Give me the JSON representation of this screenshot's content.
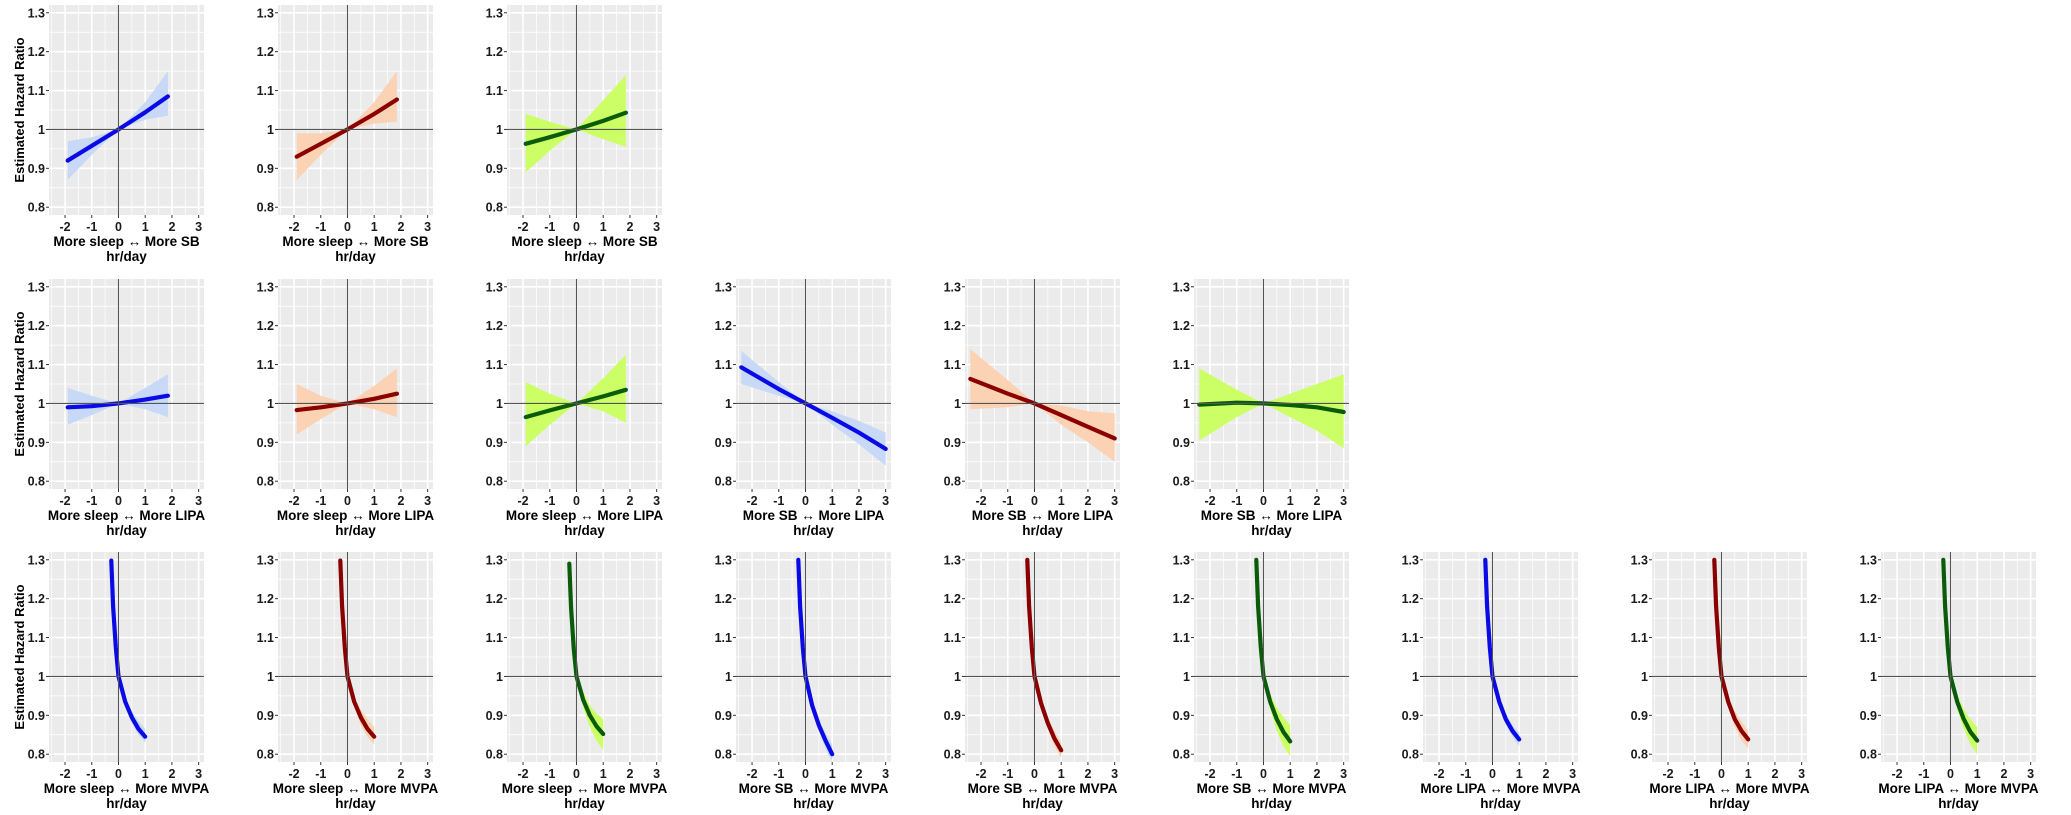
{
  "figure": {
    "ylabel": "Estimated Hazard Ratio",
    "xunit": "hr/day",
    "colors": {
      "blue": "#0a0ae6",
      "red": "#8b0000",
      "green": "#0a5c0a",
      "blue_band": "#c7d9f7",
      "red_band": "#fcd2b4",
      "green_band": "#ccff66",
      "panel_bg": "#ebebeb",
      "grid": "#ffffff",
      "ref_line": "#555555"
    }
  },
  "chart_data": [
    {
      "type": "line",
      "xlabel": "More sleep ↔ More SB",
      "ylim": [
        0.8,
        1.3
      ],
      "xlim": [
        -2,
        3
      ],
      "xticks": [
        "-2",
        "-1",
        "0",
        "1",
        "2",
        "3"
      ],
      "yticks": [
        "0.8",
        "0.9",
        "1",
        "1.1",
        "1.2",
        "1.3"
      ],
      "series": [
        {
          "color": "blue",
          "x": [
            -1.9,
            -1,
            0,
            1,
            1.85
          ],
          "y": [
            0.92,
            0.958,
            1.0,
            1.044,
            1.085
          ],
          "ci_low": [
            0.87,
            0.935,
            1.0,
            1.025,
            1.035
          ],
          "ci_high": [
            0.97,
            0.98,
            1.0,
            1.07,
            1.15
          ]
        }
      ]
    },
    {
      "type": "line",
      "xlabel": "More sleep ↔ More SB",
      "ylim": [
        0.8,
        1.3
      ],
      "xlim": [
        -2,
        3
      ],
      "xticks": [
        "-2",
        "-1",
        "0",
        "1",
        "2",
        "3"
      ],
      "yticks": [
        "0.8",
        "0.9",
        "1",
        "1.1",
        "1.2",
        "1.3"
      ],
      "series": [
        {
          "color": "red",
          "x": [
            -1.9,
            -1,
            0,
            1,
            1.85
          ],
          "y": [
            0.93,
            0.963,
            1.0,
            1.04,
            1.077
          ],
          "ci_low": [
            0.87,
            0.935,
            1.0,
            1.015,
            1.02
          ],
          "ci_high": [
            0.99,
            0.99,
            1.0,
            1.07,
            1.15
          ]
        }
      ]
    },
    {
      "type": "line",
      "xlabel": "More sleep ↔ More SB",
      "ylim": [
        0.8,
        1.3
      ],
      "xlim": [
        -2,
        3
      ],
      "xticks": [
        "-2",
        "-1",
        "0",
        "1",
        "2",
        "3"
      ],
      "yticks": [
        "0.8",
        "0.9",
        "1",
        "1.1",
        "1.2",
        "1.3"
      ],
      "series": [
        {
          "color": "green",
          "x": [
            -1.9,
            -1,
            0,
            1,
            1.85
          ],
          "y": [
            0.963,
            0.98,
            1.0,
            1.022,
            1.043
          ],
          "ci_low": [
            0.89,
            0.945,
            1.0,
            0.975,
            0.955
          ],
          "ci_high": [
            1.04,
            1.02,
            1.0,
            1.075,
            1.14
          ]
        }
      ]
    },
    {
      "type": "line",
      "xlabel": "More sleep ↔ More LIPA",
      "ylim": [
        0.8,
        1.3
      ],
      "xlim": [
        -2,
        3
      ],
      "xticks": [
        "-2",
        "-1",
        "0",
        "1",
        "2",
        "3"
      ],
      "yticks": [
        "0.8",
        "0.9",
        "1",
        "1.1",
        "1.2",
        "1.3"
      ],
      "series": [
        {
          "color": "blue",
          "x": [
            -1.9,
            -1,
            0,
            1,
            1.85
          ],
          "y": [
            0.99,
            0.993,
            1.0,
            1.01,
            1.02
          ],
          "ci_low": [
            0.945,
            0.97,
            1.0,
            0.985,
            0.965
          ],
          "ci_high": [
            1.04,
            1.02,
            1.0,
            1.04,
            1.075
          ]
        }
      ]
    },
    {
      "type": "line",
      "xlabel": "More sleep ↔ More LIPA",
      "ylim": [
        0.8,
        1.3
      ],
      "xlim": [
        -2,
        3
      ],
      "xticks": [
        "-2",
        "-1",
        "0",
        "1",
        "2",
        "3"
      ],
      "yticks": [
        "0.8",
        "0.9",
        "1",
        "1.1",
        "1.2",
        "1.3"
      ],
      "series": [
        {
          "color": "red",
          "x": [
            -1.9,
            -1,
            0,
            1,
            1.85
          ],
          "y": [
            0.983,
            0.99,
            1.0,
            1.012,
            1.025
          ],
          "ci_low": [
            0.92,
            0.96,
            1.0,
            0.985,
            0.965
          ],
          "ci_high": [
            1.05,
            1.02,
            1.0,
            1.045,
            1.09
          ]
        }
      ]
    },
    {
      "type": "line",
      "xlabel": "More sleep ↔ More LIPA",
      "ylim": [
        0.8,
        1.3
      ],
      "xlim": [
        -2,
        3
      ],
      "xticks": [
        "-2",
        "-1",
        "0",
        "1",
        "2",
        "3"
      ],
      "yticks": [
        "0.8",
        "0.9",
        "1",
        "1.1",
        "1.2",
        "1.3"
      ],
      "series": [
        {
          "color": "green",
          "x": [
            -1.9,
            -1,
            0,
            1,
            1.85
          ],
          "y": [
            0.965,
            0.982,
            1.0,
            1.018,
            1.035
          ],
          "ci_low": [
            0.89,
            0.945,
            1.0,
            0.98,
            0.95
          ],
          "ci_high": [
            1.055,
            1.025,
            1.0,
            1.065,
            1.125
          ]
        }
      ]
    },
    {
      "type": "line",
      "xlabel": "More SB ↔ More LIPA",
      "ylim": [
        0.8,
        1.3
      ],
      "xlim": [
        -2,
        3
      ],
      "xticks": [
        "-2",
        "-1",
        "0",
        "1",
        "2",
        "3"
      ],
      "yticks": [
        "0.8",
        "0.9",
        "1",
        "1.1",
        "1.2",
        "1.3"
      ],
      "series": [
        {
          "color": "blue",
          "x": [
            -2.4,
            -1,
            0,
            1,
            2,
            3
          ],
          "y": [
            1.093,
            1.037,
            1.0,
            0.963,
            0.925,
            0.883
          ],
          "ci_low": [
            1.05,
            1.02,
            1.0,
            0.945,
            0.895,
            0.84
          ],
          "ci_high": [
            1.135,
            1.055,
            1.0,
            0.98,
            0.955,
            0.925
          ]
        }
      ]
    },
    {
      "type": "line",
      "xlabel": "More SB ↔ More LIPA",
      "ylim": [
        0.8,
        1.3
      ],
      "xlim": [
        -2,
        3
      ],
      "xticks": [
        "-2",
        "-1",
        "0",
        "1",
        "2",
        "3"
      ],
      "yticks": [
        "0.8",
        "0.9",
        "1",
        "1.1",
        "1.2",
        "1.3"
      ],
      "series": [
        {
          "color": "red",
          "x": [
            -2.4,
            -1,
            0,
            1,
            2,
            3
          ],
          "y": [
            1.063,
            1.025,
            1.0,
            0.97,
            0.94,
            0.91
          ],
          "ci_low": [
            0.985,
            0.99,
            1.0,
            0.945,
            0.9,
            0.85
          ],
          "ci_high": [
            1.14,
            1.06,
            1.0,
            0.995,
            0.98,
            0.975
          ]
        }
      ]
    },
    {
      "type": "line",
      "xlabel": "More SB ↔ More LIPA",
      "ylim": [
        0.8,
        1.3
      ],
      "xlim": [
        -2,
        3
      ],
      "xticks": [
        "-2",
        "-1",
        "0",
        "1",
        "2",
        "3"
      ],
      "yticks": [
        "0.8",
        "0.9",
        "1",
        "1.1",
        "1.2",
        "1.3"
      ],
      "series": [
        {
          "color": "green",
          "x": [
            -2.4,
            -1,
            0,
            1,
            2,
            3
          ],
          "y": [
            0.997,
            1.002,
            1.0,
            0.996,
            0.99,
            0.978
          ],
          "ci_low": [
            0.905,
            0.965,
            1.0,
            0.965,
            0.93,
            0.885
          ],
          "ci_high": [
            1.09,
            1.035,
            1.0,
            1.025,
            1.05,
            1.075
          ]
        }
      ]
    },
    {
      "type": "line",
      "xlabel": "More sleep ↔ More MVPA",
      "ylim": [
        0.8,
        1.3
      ],
      "xlim": [
        -2,
        3
      ],
      "xticks": [
        "-2",
        "-1",
        "0",
        "1",
        "2",
        "3"
      ],
      "yticks": [
        "0.8",
        "0.9",
        "1",
        "1.1",
        "1.2",
        "1.3"
      ],
      "series": [
        {
          "color": "blue",
          "x": [
            -0.27,
            -0.2,
            -0.1,
            0,
            0.25,
            0.5,
            0.75,
            1.0
          ],
          "y": [
            1.298,
            1.18,
            1.075,
            1.0,
            0.935,
            0.895,
            0.865,
            0.845
          ],
          "ci_low": [
            1.28,
            1.16,
            1.06,
            1.0,
            0.925,
            0.88,
            0.85,
            0.83
          ],
          "ci_high": [
            1.31,
            1.195,
            1.085,
            1.0,
            0.945,
            0.91,
            0.885,
            0.865
          ]
        }
      ]
    },
    {
      "type": "line",
      "xlabel": "More sleep ↔ More MVPA",
      "ylim": [
        0.8,
        1.3
      ],
      "xlim": [
        -2,
        3
      ],
      "xticks": [
        "-2",
        "-1",
        "0",
        "1",
        "2",
        "3"
      ],
      "yticks": [
        "0.8",
        "0.9",
        "1",
        "1.1",
        "1.2",
        "1.3"
      ],
      "series": [
        {
          "color": "red",
          "x": [
            -0.27,
            -0.2,
            -0.1,
            0,
            0.25,
            0.5,
            0.75,
            1.0
          ],
          "y": [
            1.298,
            1.18,
            1.075,
            1.0,
            0.935,
            0.895,
            0.865,
            0.845
          ],
          "ci_low": [
            1.28,
            1.16,
            1.06,
            1.0,
            0.925,
            0.875,
            0.845,
            0.825
          ],
          "ci_high": [
            1.31,
            1.195,
            1.085,
            1.0,
            0.945,
            0.915,
            0.89,
            0.87
          ]
        }
      ]
    },
    {
      "type": "line",
      "xlabel": "More sleep ↔ More MVPA",
      "ylim": [
        0.8,
        1.3
      ],
      "xlim": [
        -2,
        3
      ],
      "xticks": [
        "-2",
        "-1",
        "0",
        "1",
        "2",
        "3"
      ],
      "yticks": [
        "0.8",
        "0.9",
        "1",
        "1.1",
        "1.2",
        "1.3"
      ],
      "series": [
        {
          "color": "green",
          "x": [
            -0.27,
            -0.2,
            -0.1,
            0,
            0.25,
            0.5,
            0.75,
            1.0
          ],
          "y": [
            1.29,
            1.175,
            1.07,
            1.0,
            0.94,
            0.9,
            0.872,
            0.852
          ],
          "ci_low": [
            1.27,
            1.155,
            1.055,
            1.0,
            0.92,
            0.87,
            0.835,
            0.81
          ],
          "ci_high": [
            1.305,
            1.19,
            1.085,
            1.0,
            0.96,
            0.925,
            0.905,
            0.89
          ]
        }
      ]
    },
    {
      "type": "line",
      "xlabel": "More SB ↔ More MVPA",
      "ylim": [
        0.8,
        1.3
      ],
      "xlim": [
        -2,
        3
      ],
      "xticks": [
        "-2",
        "-1",
        "0",
        "1",
        "2",
        "3"
      ],
      "yticks": [
        "0.8",
        "0.9",
        "1",
        "1.1",
        "1.2",
        "1.3"
      ],
      "series": [
        {
          "color": "blue",
          "x": [
            -0.27,
            -0.2,
            -0.1,
            0,
            0.25,
            0.5,
            0.75,
            1.0
          ],
          "y": [
            1.3,
            1.18,
            1.075,
            1.0,
            0.925,
            0.875,
            0.835,
            0.8
          ],
          "ci_low": [
            1.285,
            1.165,
            1.06,
            1.0,
            0.915,
            0.86,
            0.815,
            0.78
          ],
          "ci_high": [
            1.315,
            1.195,
            1.09,
            1.0,
            0.935,
            0.89,
            0.855,
            0.825
          ]
        }
      ]
    },
    {
      "type": "line",
      "xlabel": "More SB ↔ More MVPA",
      "ylim": [
        0.8,
        1.3
      ],
      "xlim": [
        -2,
        3
      ],
      "xticks": [
        "-2",
        "-1",
        "0",
        "1",
        "2",
        "3"
      ],
      "yticks": [
        "0.8",
        "0.9",
        "1",
        "1.1",
        "1.2",
        "1.3"
      ],
      "series": [
        {
          "color": "red",
          "x": [
            -0.27,
            -0.2,
            -0.1,
            0,
            0.25,
            0.5,
            0.75,
            1.0
          ],
          "y": [
            1.3,
            1.18,
            1.075,
            1.0,
            0.93,
            0.88,
            0.84,
            0.81
          ],
          "ci_low": [
            1.285,
            1.165,
            1.06,
            1.0,
            0.915,
            0.865,
            0.82,
            0.79
          ],
          "ci_high": [
            1.315,
            1.195,
            1.09,
            1.0,
            0.94,
            0.895,
            0.86,
            0.83
          ]
        }
      ]
    },
    {
      "type": "line",
      "xlabel": "More SB ↔ More MVPA",
      "ylim": [
        0.8,
        1.3
      ],
      "xlim": [
        -2,
        3
      ],
      "xticks": [
        "-2",
        "-1",
        "0",
        "1",
        "2",
        "3"
      ],
      "yticks": [
        "0.8",
        "0.9",
        "1",
        "1.1",
        "1.2",
        "1.3"
      ],
      "series": [
        {
          "color": "green",
          "x": [
            -0.27,
            -0.2,
            -0.1,
            0,
            0.25,
            0.5,
            0.75,
            1.0
          ],
          "y": [
            1.3,
            1.18,
            1.075,
            1.0,
            0.935,
            0.89,
            0.857,
            0.833
          ],
          "ci_low": [
            1.28,
            1.16,
            1.06,
            1.0,
            0.915,
            0.86,
            0.82,
            0.795
          ],
          "ci_high": [
            1.315,
            1.195,
            1.09,
            1.0,
            0.955,
            0.92,
            0.895,
            0.875
          ]
        }
      ]
    },
    {
      "type": "line",
      "xlabel": "More LIPA ↔ More MVPA",
      "ylim": [
        0.8,
        1.3
      ],
      "xlim": [
        -2,
        3
      ],
      "xticks": [
        "-2",
        "-1",
        "0",
        "1",
        "2",
        "3"
      ],
      "yticks": [
        "0.8",
        "0.9",
        "1",
        "1.1",
        "1.2",
        "1.3"
      ],
      "series": [
        {
          "color": "blue",
          "x": [
            -0.27,
            -0.2,
            -0.1,
            0,
            0.25,
            0.5,
            0.75,
            1.0
          ],
          "y": [
            1.3,
            1.18,
            1.075,
            1.0,
            0.935,
            0.89,
            0.86,
            0.838
          ],
          "ci_low": [
            1.285,
            1.165,
            1.06,
            1.0,
            0.925,
            0.875,
            0.845,
            0.82
          ],
          "ci_high": [
            1.315,
            1.195,
            1.09,
            1.0,
            0.945,
            0.905,
            0.875,
            0.855
          ]
        }
      ]
    },
    {
      "type": "line",
      "xlabel": "More LIPA ↔ More MVPA",
      "ylim": [
        0.8,
        1.3
      ],
      "xlim": [
        -2,
        3
      ],
      "xticks": [
        "-2",
        "-1",
        "0",
        "1",
        "2",
        "3"
      ],
      "yticks": [
        "0.8",
        "0.9",
        "1",
        "1.1",
        "1.2",
        "1.3"
      ],
      "series": [
        {
          "color": "red",
          "x": [
            -0.27,
            -0.2,
            -0.1,
            0,
            0.25,
            0.5,
            0.75,
            1.0
          ],
          "y": [
            1.3,
            1.18,
            1.075,
            1.0,
            0.935,
            0.89,
            0.86,
            0.838
          ],
          "ci_low": [
            1.285,
            1.165,
            1.06,
            1.0,
            0.92,
            0.87,
            0.835,
            0.815
          ],
          "ci_high": [
            1.315,
            1.195,
            1.09,
            1.0,
            0.95,
            0.91,
            0.885,
            0.86
          ]
        }
      ]
    },
    {
      "type": "line",
      "xlabel": "More LIPA ↔ More MVPA",
      "ylim": [
        0.8,
        1.3
      ],
      "xlim": [
        -2,
        3
      ],
      "xticks": [
        "-2",
        "-1",
        "0",
        "1",
        "2",
        "3"
      ],
      "yticks": [
        "0.8",
        "0.9",
        "1",
        "1.1",
        "1.2",
        "1.3"
      ],
      "series": [
        {
          "color": "green",
          "x": [
            -0.27,
            -0.2,
            -0.1,
            0,
            0.25,
            0.5,
            0.75,
            1.0
          ],
          "y": [
            1.3,
            1.18,
            1.075,
            1.0,
            0.935,
            0.89,
            0.857,
            0.835
          ],
          "ci_low": [
            1.28,
            1.16,
            1.06,
            1.0,
            0.915,
            0.865,
            0.825,
            0.8
          ],
          "ci_high": [
            1.315,
            1.195,
            1.09,
            1.0,
            0.955,
            0.915,
            0.89,
            0.87
          ]
        }
      ]
    }
  ]
}
